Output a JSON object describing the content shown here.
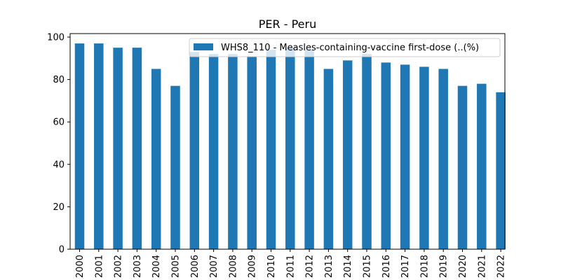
{
  "chart_data": {
    "type": "bar",
    "title": "PER - Peru",
    "xlabel": "",
    "ylabel": "",
    "categories": [
      "2000",
      "2001",
      "2002",
      "2003",
      "2004",
      "2005",
      "2006",
      "2007",
      "2008",
      "2009",
      "2010",
      "2011",
      "2012",
      "2013",
      "2014",
      "2015",
      "2016",
      "2017",
      "2018",
      "2019",
      "2020",
      "2021",
      "2022"
    ],
    "series": [
      {
        "name": "WHS8_110 - Measles-containing-vaccine first-dose (..(%)",
        "color": "#1f77b4",
        "values": [
          97,
          97,
          95,
          95,
          85,
          77,
          93,
          92,
          92,
          91,
          94,
          95,
          94,
          85,
          89,
          92,
          88,
          87,
          86,
          85,
          77,
          78,
          74
        ]
      }
    ],
    "ylim": [
      0,
      100
    ],
    "yticks": [
      0,
      20,
      40,
      60,
      80,
      100
    ],
    "grid": false,
    "legend_position": "top-right"
  }
}
